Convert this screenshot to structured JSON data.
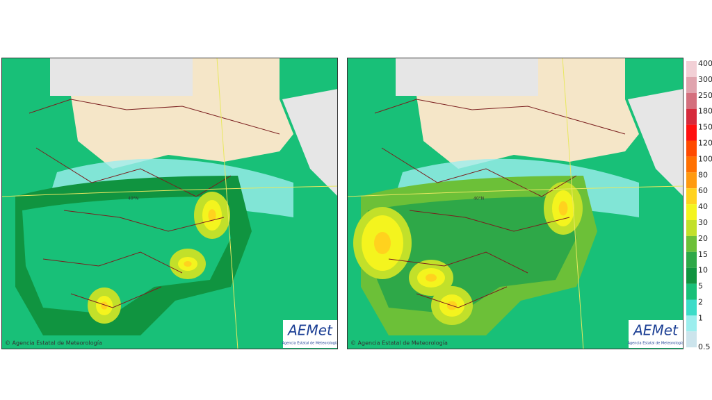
{
  "maps": [
    {
      "copyright": "© Agencia Estatal de Meteorología",
      "logo": "AEMet",
      "logo_sub": "Agencia Estatal de Meteorología",
      "lat_label": "40°N"
    },
    {
      "copyright": "© Agencia Estatal de Meteorología",
      "logo": "AEMet",
      "logo_sub": "Agencia Estatal de Meteorología",
      "lat_label": "40°N"
    }
  ],
  "legend": [
    {
      "label": "400",
      "color": "#f2d0d6"
    },
    {
      "label": "300",
      "color": "#e0a4ae"
    },
    {
      "label": "250",
      "color": "#d4707e"
    },
    {
      "label": "180",
      "color": "#d62a3c"
    },
    {
      "label": "150",
      "color": "#ff1010"
    },
    {
      "label": "120",
      "color": "#ff4a00"
    },
    {
      "label": "100",
      "color": "#ff7000"
    },
    {
      "label": "80",
      "color": "#ff9a10"
    },
    {
      "label": "60",
      "color": "#ffd21e"
    },
    {
      "label": "40",
      "color": "#f4f41e"
    },
    {
      "label": "30",
      "color": "#c2e02a"
    },
    {
      "label": "20",
      "color": "#6cc038"
    },
    {
      "label": "15",
      "color": "#2ea848"
    },
    {
      "label": "10",
      "color": "#109440"
    },
    {
      "label": "5",
      "color": "#18c078"
    },
    {
      "label": "2",
      "color": "#3cdcc8"
    },
    {
      "label": "1",
      "color": "#9ceeee"
    },
    {
      "label": "0.5",
      "color": "#cce4ec"
    }
  ]
}
